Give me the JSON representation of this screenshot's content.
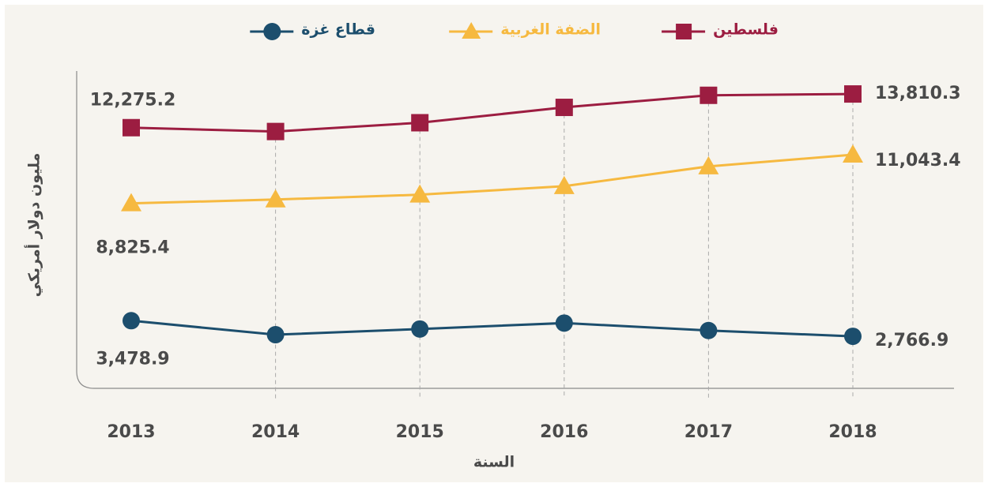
{
  "chart_data": {
    "type": "line",
    "categories": [
      "2013",
      "2014",
      "2015",
      "2016",
      "2017",
      "2018"
    ],
    "series": [
      {
        "name": "فلسطين",
        "color": "#9c1d41",
        "marker": "square",
        "values": [
          12275.2,
          12100,
          12500,
          13200,
          13750,
          13810.3
        ],
        "value_labels": [
          "12,275.2",
          null,
          null,
          null,
          null,
          "13,810.3"
        ]
      },
      {
        "name": "الضفة الغربية",
        "color": "#f6b940",
        "marker": "triangle",
        "values": [
          8825.4,
          9000,
          9220,
          9610,
          10510,
          11043.4
        ],
        "value_labels": [
          "8,825.4",
          null,
          null,
          null,
          null,
          "11,043.4"
        ]
      },
      {
        "name": "قطاع غزة",
        "color": "#1c4e6d",
        "marker": "circle",
        "values": [
          3478.9,
          2840,
          3100,
          3370,
          3030,
          2766.9
        ],
        "value_labels": [
          "3,478.9",
          null,
          null,
          null,
          null,
          "2,766.9"
        ]
      }
    ],
    "x_label": "السنة",
    "y_label": "مليون دولار أمريكي",
    "ylim": [
      0,
      15000
    ]
  }
}
